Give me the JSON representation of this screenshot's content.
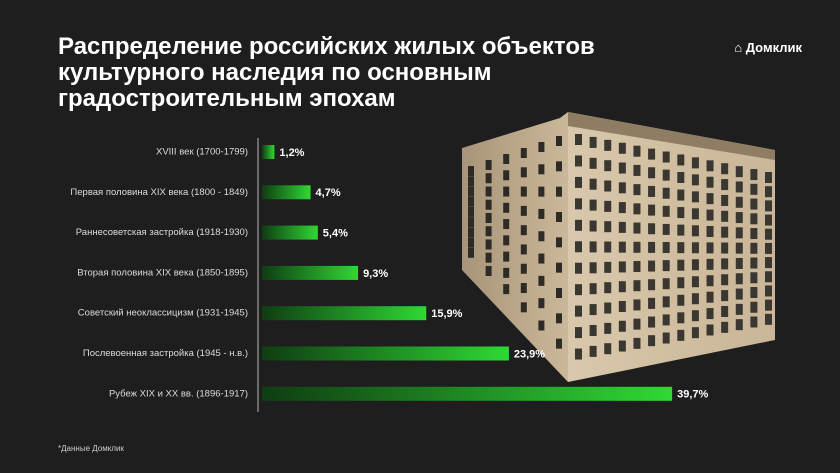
{
  "chart_data": {
    "type": "bar",
    "orientation": "horizontal",
    "title": "Распределение российских жилых объектов культурного наследия по основным градостроительным эпохам",
    "brand": "Домклик",
    "note": "*Данные Домклик",
    "categories": [
      "XVIII век (1700-1799)",
      "Первая половина XIX века (1800 - 1849)",
      "Раннесоветская застройка (1918-1930)",
      "Вторая половина XIX века (1850-1895)",
      "Советский неоклассицизм (1931-1945)",
      "Послевоенная застройка (1945 - н.в.)",
      "Рубеж XIX и XX вв. (1896-1917)"
    ],
    "values": [
      1.2,
      4.7,
      5.4,
      9.3,
      15.9,
      23.9,
      39.7
    ],
    "value_labels": [
      "1,2%",
      "4,7%",
      "5,4%",
      "9,3%",
      "15,9%",
      "23,9%",
      "39,7%"
    ],
    "color": "#2fd934"
  }
}
